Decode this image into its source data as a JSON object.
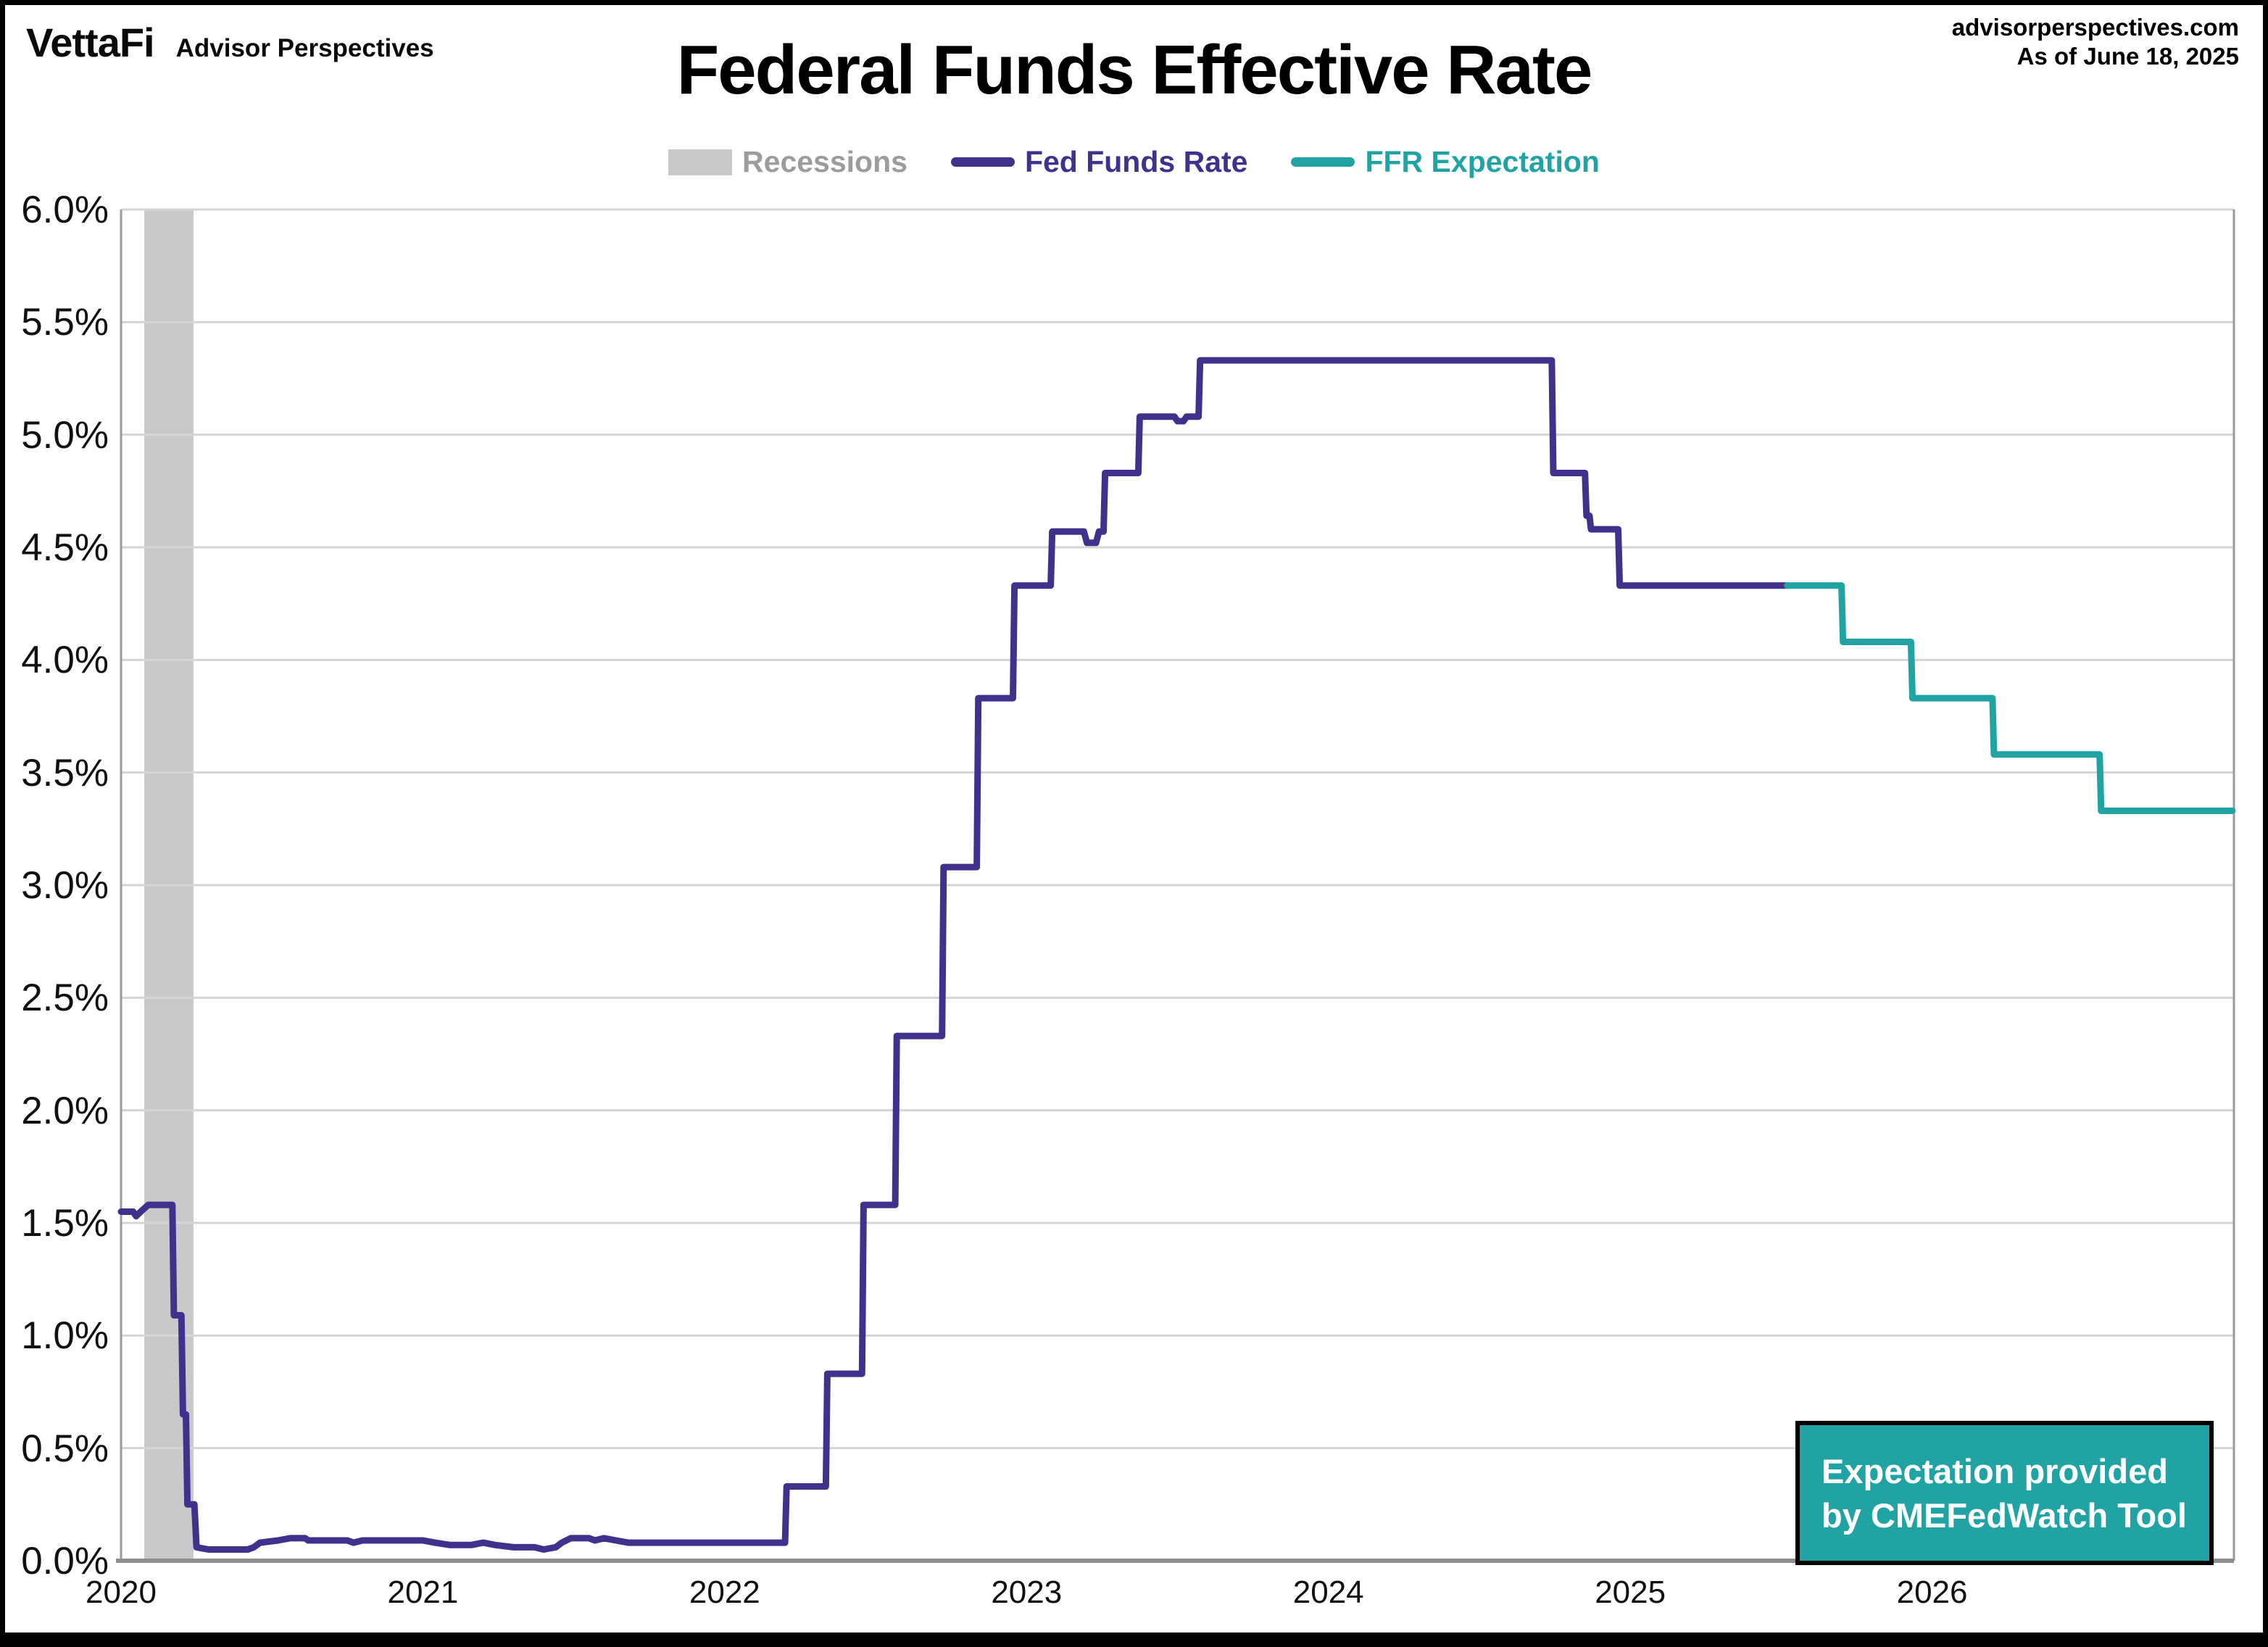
{
  "header": {
    "logo_primary": "VettaFi",
    "logo_secondary": "Advisor Perspectives",
    "source_site": "advisorperspectives.com",
    "as_of": "As of June 18, 2025"
  },
  "title": "Federal Funds Effective Rate",
  "legend": [
    {
      "id": "recessions",
      "label": "Recessions",
      "swatch": "band",
      "color": "#c9c9c9",
      "text_color": "#9c9c9c"
    },
    {
      "id": "fed-funds-rate",
      "label": "Fed Funds Rate",
      "swatch": "line",
      "color": "#41318c",
      "text_color": "#41318c"
    },
    {
      "id": "ffr-expectation",
      "label": "FFR Expectation",
      "swatch": "line",
      "color": "#21a3a3",
      "text_color": "#21a3a3"
    }
  ],
  "annotation": {
    "line1": "Expectation provided",
    "line2": "by CMEFedWatch Tool",
    "bg": "#21a3a3",
    "text_color": "#ffffff"
  },
  "colors": {
    "gridline": "#d5d5d5",
    "spine": "#9a9a9a",
    "axis_bottom": "#8f8f8f",
    "recession_band": "#c9c9c9",
    "fed_funds": "#41318c",
    "expectation": "#21a3a3"
  },
  "chart_data": {
    "type": "line",
    "title": "Federal Funds Effective Rate",
    "xlabel": "",
    "ylabel": "",
    "x_range": [
      2020,
      2027
    ],
    "y_range": [
      0,
      6
    ],
    "grid": "horizontal",
    "legend_position": "top-center",
    "y_ticks": [
      {
        "value": 6.0,
        "label": "6.0%"
      },
      {
        "value": 5.5,
        "label": "5.5%"
      },
      {
        "value": 5.0,
        "label": "5.0%"
      },
      {
        "value": 4.5,
        "label": "4.5%"
      },
      {
        "value": 4.0,
        "label": "4.0%"
      },
      {
        "value": 3.5,
        "label": "3.5%"
      },
      {
        "value": 3.0,
        "label": "3.0%"
      },
      {
        "value": 2.5,
        "label": "2.5%"
      },
      {
        "value": 2.0,
        "label": "2.0%"
      },
      {
        "value": 1.5,
        "label": "1.5%"
      },
      {
        "value": 1.0,
        "label": "1.0%"
      },
      {
        "value": 0.5,
        "label": "0.5%"
      },
      {
        "value": 0.0,
        "label": "0.0%"
      }
    ],
    "x_ticks": [
      {
        "value": 2020,
        "label": "2020"
      },
      {
        "value": 2021,
        "label": "2021"
      },
      {
        "value": 2022,
        "label": "2022"
      },
      {
        "value": 2023,
        "label": "2023"
      },
      {
        "value": 2024,
        "label": "2024"
      },
      {
        "value": 2025,
        "label": "2025"
      },
      {
        "value": 2026,
        "label": "2026"
      }
    ],
    "recession_bands": [
      {
        "start": 2020.077,
        "end": 2020.24
      }
    ],
    "series": [
      {
        "name": "Fed Funds Rate",
        "color": "#41318c",
        "points": [
          [
            2020.0,
            1.55
          ],
          [
            2020.04,
            1.55
          ],
          [
            2020.05,
            1.53
          ],
          [
            2020.065,
            1.55
          ],
          [
            2020.09,
            1.58
          ],
          [
            2020.17,
            1.58
          ],
          [
            2020.175,
            1.09
          ],
          [
            2020.2,
            1.09
          ],
          [
            2020.205,
            0.65
          ],
          [
            2020.215,
            0.65
          ],
          [
            2020.22,
            0.25
          ],
          [
            2020.243,
            0.25
          ],
          [
            2020.25,
            0.06
          ],
          [
            2020.29,
            0.05
          ],
          [
            2020.42,
            0.05
          ],
          [
            2020.44,
            0.06
          ],
          [
            2020.46,
            0.08
          ],
          [
            2020.52,
            0.09
          ],
          [
            2020.56,
            0.1
          ],
          [
            2020.61,
            0.1
          ],
          [
            2020.62,
            0.09
          ],
          [
            2020.75,
            0.09
          ],
          [
            2020.77,
            0.08
          ],
          [
            2020.8,
            0.09
          ],
          [
            2021.0,
            0.09
          ],
          [
            2021.04,
            0.08
          ],
          [
            2021.09,
            0.07
          ],
          [
            2021.16,
            0.07
          ],
          [
            2021.2,
            0.08
          ],
          [
            2021.24,
            0.07
          ],
          [
            2021.3,
            0.06
          ],
          [
            2021.37,
            0.06
          ],
          [
            2021.4,
            0.05
          ],
          [
            2021.44,
            0.06
          ],
          [
            2021.46,
            0.08
          ],
          [
            2021.49,
            0.1
          ],
          [
            2021.55,
            0.1
          ],
          [
            2021.57,
            0.09
          ],
          [
            2021.6,
            0.1
          ],
          [
            2021.64,
            0.09
          ],
          [
            2021.68,
            0.08
          ],
          [
            2021.75,
            0.08
          ],
          [
            2022.2,
            0.08
          ],
          [
            2022.205,
            0.33
          ],
          [
            2022.335,
            0.33
          ],
          [
            2022.34,
            0.83
          ],
          [
            2022.455,
            0.83
          ],
          [
            2022.46,
            1.58
          ],
          [
            2022.565,
            1.58
          ],
          [
            2022.57,
            2.33
          ],
          [
            2022.72,
            2.33
          ],
          [
            2022.725,
            3.08
          ],
          [
            2022.835,
            3.08
          ],
          [
            2022.84,
            3.83
          ],
          [
            2022.955,
            3.83
          ],
          [
            2022.96,
            4.33
          ],
          [
            2023.08,
            4.33
          ],
          [
            2023.085,
            4.57
          ],
          [
            2023.19,
            4.57
          ],
          [
            2023.2,
            4.52
          ],
          [
            2023.23,
            4.52
          ],
          [
            2023.24,
            4.57
          ],
          [
            2023.255,
            4.57
          ],
          [
            2023.26,
            4.83
          ],
          [
            2023.37,
            4.83
          ],
          [
            2023.375,
            5.08
          ],
          [
            2023.49,
            5.08
          ],
          [
            2023.5,
            5.06
          ],
          [
            2023.52,
            5.06
          ],
          [
            2023.53,
            5.08
          ],
          [
            2023.57,
            5.08
          ],
          [
            2023.575,
            5.33
          ],
          [
            2024.74,
            5.33
          ],
          [
            2024.745,
            4.83
          ],
          [
            2024.85,
            4.83
          ],
          [
            2024.855,
            4.64
          ],
          [
            2024.865,
            4.64
          ],
          [
            2024.87,
            4.58
          ],
          [
            2024.96,
            4.58
          ],
          [
            2024.965,
            4.33
          ],
          [
            2025.52,
            4.33
          ]
        ]
      },
      {
        "name": "FFR Expectation",
        "color": "#21a3a3",
        "points": [
          [
            2025.52,
            4.33
          ],
          [
            2025.7,
            4.33
          ],
          [
            2025.705,
            4.08
          ],
          [
            2025.93,
            4.08
          ],
          [
            2025.935,
            3.83
          ],
          [
            2026.2,
            3.83
          ],
          [
            2026.205,
            3.58
          ],
          [
            2026.555,
            3.58
          ],
          [
            2026.56,
            3.33
          ],
          [
            2026.995,
            3.33
          ]
        ]
      }
    ]
  }
}
